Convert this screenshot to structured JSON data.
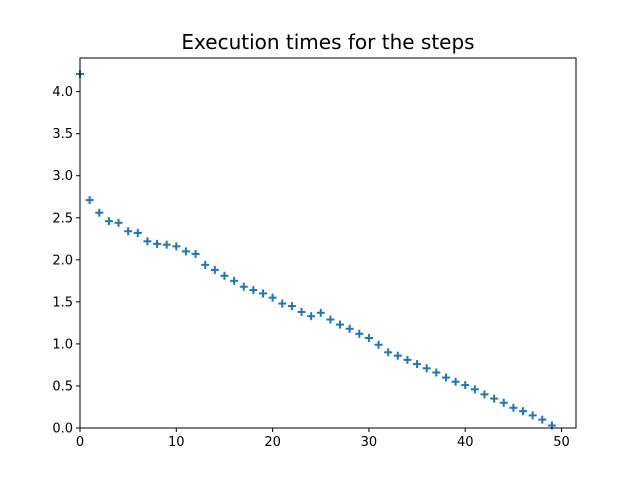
{
  "chart_data": {
    "type": "scatter",
    "title": "Execution times for the steps",
    "xlabel": "",
    "ylabel": "",
    "xlim": [
      0,
      51.5
    ],
    "ylim": [
      0,
      4.4
    ],
    "xticks": [
      "0",
      "10",
      "20",
      "30",
      "40",
      "50"
    ],
    "yticks": [
      "0.0",
      "0.5",
      "1.0",
      "1.5",
      "2.0",
      "2.5",
      "3.0",
      "3.5",
      "4.0"
    ],
    "grid": false,
    "marker": "+",
    "color": "#1f77b4",
    "series": [
      {
        "x": [
          0,
          1,
          2,
          3,
          4,
          5,
          6,
          7,
          8,
          9,
          10,
          11,
          12,
          13,
          14,
          15,
          16,
          17,
          18,
          19,
          20,
          21,
          22,
          23,
          24,
          25,
          26,
          27,
          28,
          29,
          30,
          31,
          32,
          33,
          34,
          35,
          36,
          37,
          38,
          39,
          40,
          41,
          42,
          43,
          44,
          45,
          46,
          47,
          48,
          49
        ],
        "y": [
          4.21,
          2.71,
          2.56,
          2.46,
          2.44,
          2.34,
          2.32,
          2.22,
          2.19,
          2.18,
          2.16,
          2.1,
          2.07,
          1.94,
          1.88,
          1.81,
          1.75,
          1.68,
          1.64,
          1.6,
          1.55,
          1.48,
          1.45,
          1.38,
          1.33,
          1.37,
          1.29,
          1.23,
          1.18,
          1.12,
          1.07,
          0.99,
          0.9,
          0.86,
          0.81,
          0.76,
          0.71,
          0.66,
          0.6,
          0.55,
          0.51,
          0.46,
          0.4,
          0.35,
          0.3,
          0.24,
          0.2,
          0.15,
          0.1,
          0.03
        ]
      }
    ]
  }
}
